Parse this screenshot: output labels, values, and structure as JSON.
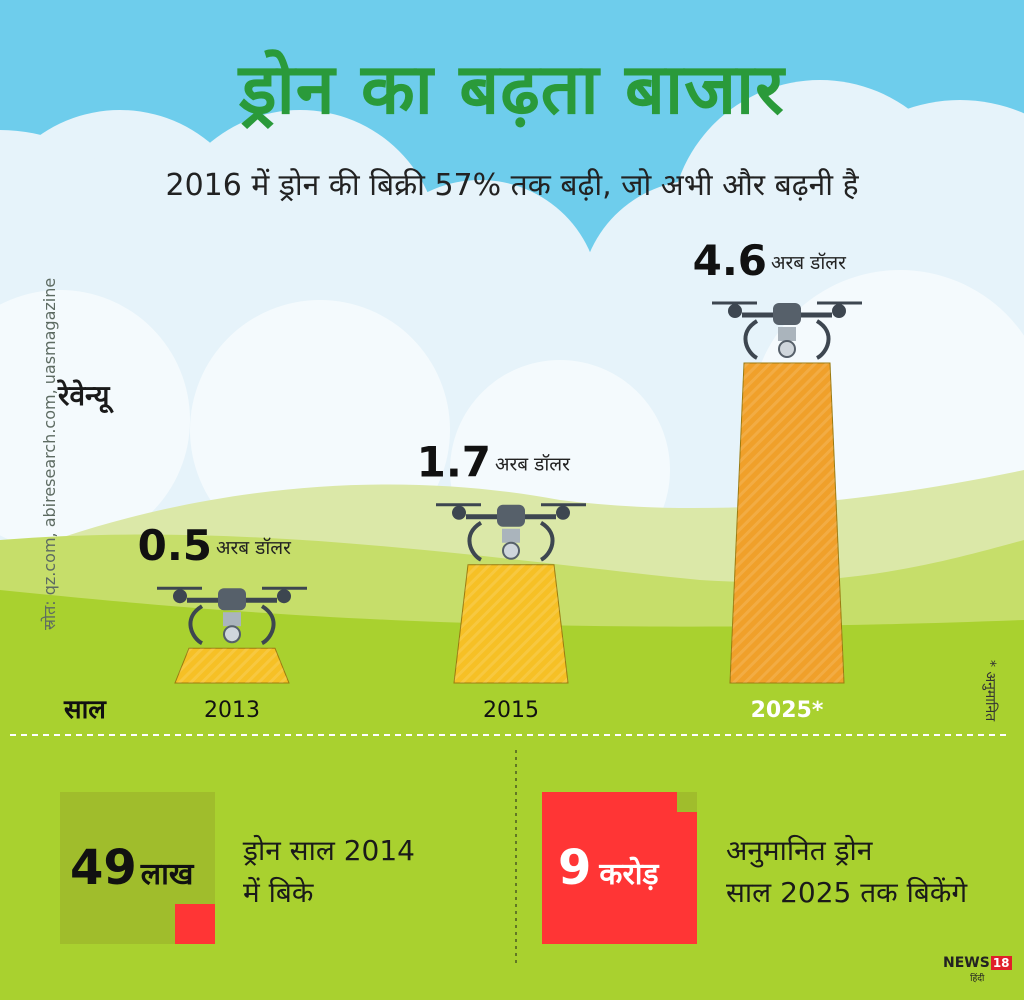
{
  "title": "ड्रोन का बढ़ता बाजार",
  "subtitle": "2016 में ड्रोन की बिक्री 57% तक बढ़ी, जो अभी और बढ़नी है",
  "source": "स्रोत: qz.com, abiresearch.com, uasmagazine",
  "estimate_note": "* अनुमानित",
  "revenue_label": "रेवेन्यू",
  "year_label": "साल",
  "chart_data": {
    "type": "bar",
    "categories": [
      "2013",
      "2015",
      "2025*"
    ],
    "values": [
      0.5,
      1.7,
      4.6
    ],
    "value_labels": [
      "0.5",
      "1.7",
      "4.6"
    ],
    "unit": "अरब डॉलर",
    "bar_colors": [
      "#f6c025",
      "#f6c025",
      "#f0a02a"
    ],
    "ylim": [
      0,
      4.6
    ]
  },
  "stats": [
    {
      "number": "49",
      "unit": "लाख",
      "line1": "ड्रोन साल 2014",
      "line2": "में बिके"
    },
    {
      "number": "9",
      "unit": "करोड़",
      "line1": "अनुमानित ड्रोन",
      "line2": "साल 2025 तक बिकेंगे"
    }
  ],
  "colors": {
    "sky": "#6ecdec",
    "grass": "#a9d12f",
    "title_green": "#2a9a3a",
    "stat_red": "#ff3535",
    "stat_box": "#a0bd2c"
  },
  "logo": {
    "text": "NEWS",
    "badge": "18",
    "sub": "हिंदी"
  }
}
